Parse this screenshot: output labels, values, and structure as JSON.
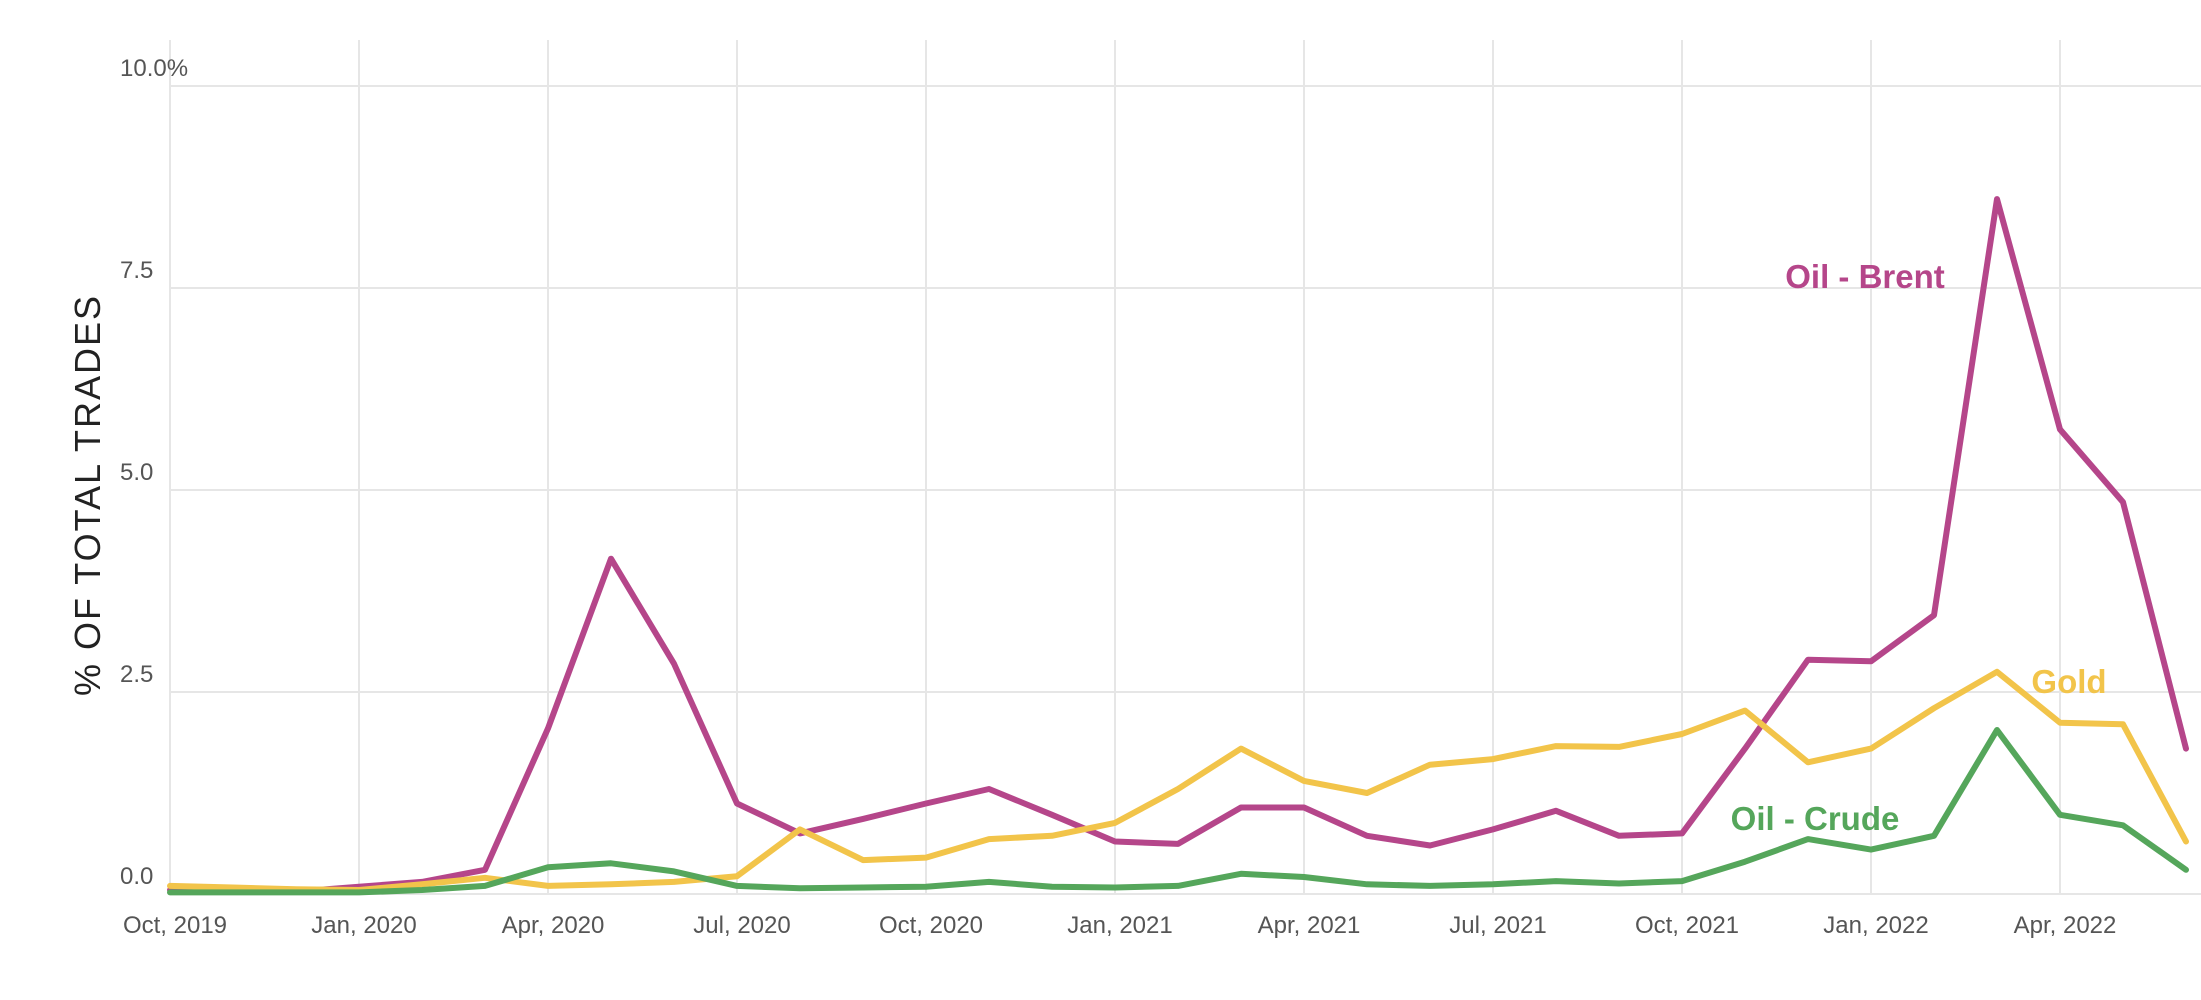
{
  "chart_data": {
    "type": "line",
    "ylabel": "% OF TOTAL TRADES",
    "xlabel": "",
    "ylim": [
      0,
      10
    ],
    "yticks": [
      {
        "value": 0,
        "label": "0.0"
      },
      {
        "value": 2.5,
        "label": "2.5"
      },
      {
        "value": 5,
        "label": "5.0"
      },
      {
        "value": 7.5,
        "label": "7.5"
      },
      {
        "value": 10,
        "label": "10.0%"
      }
    ],
    "xticks": [
      {
        "index": 0,
        "label": "Oct, 2019"
      },
      {
        "index": 3,
        "label": "Jan, 2020"
      },
      {
        "index": 6,
        "label": "Apr, 2020"
      },
      {
        "index": 9,
        "label": "Jul, 2020"
      },
      {
        "index": 12,
        "label": "Oct, 2020"
      },
      {
        "index": 15,
        "label": "Jan, 2021"
      },
      {
        "index": 18,
        "label": "Apr, 2021"
      },
      {
        "index": 21,
        "label": "Jul, 2021"
      },
      {
        "index": 24,
        "label": "Oct, 2021"
      },
      {
        "index": 27,
        "label": "Jan, 2022"
      },
      {
        "index": 30,
        "label": "Apr, 2022"
      }
    ],
    "x": [
      "Oct, 2019",
      "Nov, 2019",
      "Dec, 2019",
      "Jan, 2020",
      "Feb, 2020",
      "Mar, 2020",
      "Apr, 2020",
      "May, 2020",
      "Jun, 2020",
      "Jul, 2020",
      "Aug, 2020",
      "Sep, 2020",
      "Oct, 2020",
      "Nov, 2020",
      "Dec, 2020",
      "Jan, 2021",
      "Feb, 2021",
      "Mar, 2021",
      "Apr, 2021",
      "May, 2021",
      "Jun, 2021",
      "Jul, 2021",
      "Aug, 2021",
      "Sep, 2021",
      "Oct, 2021",
      "Nov, 2021",
      "Dec, 2021",
      "Jan, 2022",
      "Feb, 2022",
      "Mar, 2022",
      "Apr, 2022",
      "May, 2022",
      "Jun, 2022"
    ],
    "grid": true,
    "legend": "inline labels",
    "series": [
      {
        "name": "Oil - Brent",
        "color": "#b5468a",
        "values": [
          0.05,
          0.04,
          0.03,
          0.09,
          0.15,
          0.3,
          2.05,
          4.15,
          2.85,
          1.12,
          0.75,
          0.93,
          1.12,
          1.3,
          0.98,
          0.65,
          0.62,
          1.07,
          1.07,
          0.72,
          0.6,
          0.8,
          1.03,
          0.72,
          0.75,
          1.8,
          2.9,
          2.88,
          3.45,
          8.6,
          5.75,
          4.85,
          1.8
        ]
      },
      {
        "name": "Gold",
        "color": "#f2c44a",
        "values": [
          0.1,
          0.08,
          0.06,
          0.05,
          0.12,
          0.2,
          0.1,
          0.12,
          0.15,
          0.22,
          0.8,
          0.42,
          0.45,
          0.68,
          0.72,
          0.88,
          1.3,
          1.8,
          1.4,
          1.25,
          1.6,
          1.67,
          1.83,
          1.82,
          1.98,
          2.27,
          1.63,
          1.8,
          2.3,
          2.75,
          2.12,
          2.1,
          0.65
        ]
      },
      {
        "name": "Oil - Crude",
        "color": "#55a65b",
        "values": [
          0.02,
          0.02,
          0.02,
          0.02,
          0.05,
          0.1,
          0.33,
          0.38,
          0.28,
          0.1,
          0.07,
          0.08,
          0.09,
          0.15,
          0.09,
          0.08,
          0.1,
          0.25,
          0.21,
          0.12,
          0.1,
          0.12,
          0.16,
          0.13,
          0.16,
          0.4,
          0.68,
          0.55,
          0.72,
          2.03,
          0.98,
          0.85,
          0.3
        ]
      }
    ]
  }
}
